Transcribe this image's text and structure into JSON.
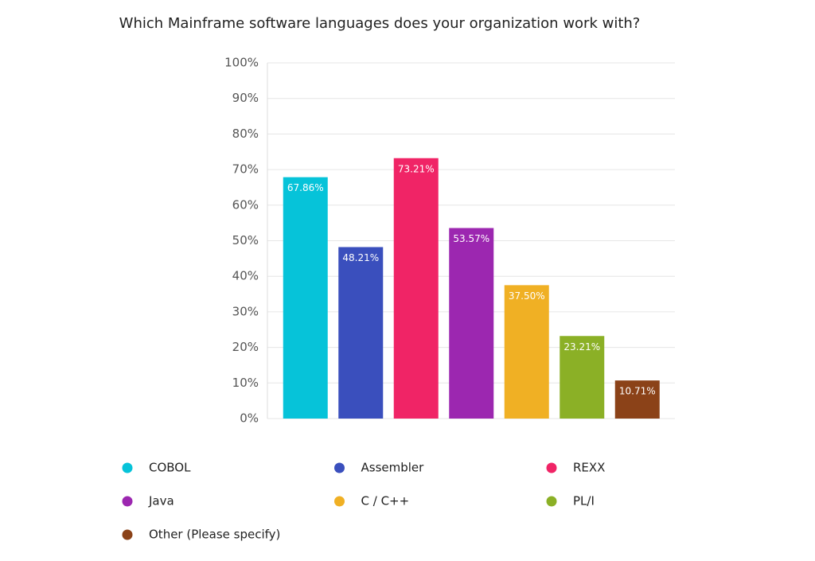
{
  "chart_data": {
    "type": "bar",
    "title": "Which Mainframe software languages does your organization work with?",
    "categories": [
      "COBOL",
      "Assembler",
      "REXX",
      "Java",
      "C / C++",
      "PL/I",
      "Other (Please specify)"
    ],
    "values": [
      67.86,
      48.21,
      73.21,
      53.57,
      37.5,
      23.21,
      10.71
    ],
    "value_labels": [
      "67.86%",
      "48.21%",
      "73.21%",
      "53.57%",
      "37.50%",
      "23.21%",
      "10.71%"
    ],
    "colors": [
      "#06c3d9",
      "#3a4fbd",
      "#f02466",
      "#9c27b0",
      "#f0b024",
      "#8bb026",
      "#8b4218"
    ],
    "ylim": [
      0,
      100
    ],
    "yticks": [
      {
        "value": 0,
        "label": "0%"
      },
      {
        "value": 10,
        "label": "10%"
      },
      {
        "value": 20,
        "label": "20%"
      },
      {
        "value": 30,
        "label": "30%"
      },
      {
        "value": 40,
        "label": "40%"
      },
      {
        "value": 50,
        "label": "50%"
      },
      {
        "value": 60,
        "label": "60%"
      },
      {
        "value": 70,
        "label": "70%"
      },
      {
        "value": 80,
        "label": "80%"
      },
      {
        "value": 90,
        "label": "90%"
      },
      {
        "value": 100,
        "label": "100%"
      }
    ],
    "grid": true
  }
}
